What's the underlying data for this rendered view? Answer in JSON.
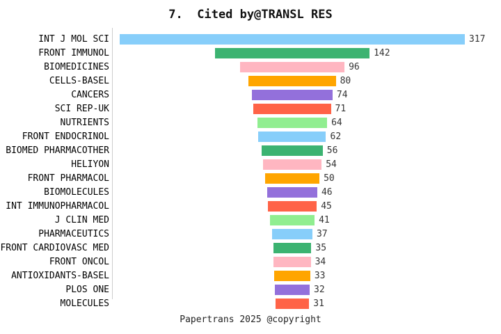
{
  "chart_data": {
    "type": "bar",
    "variant": "horizontal-centered-funnel",
    "title": "7.  Cited by@TRANSL RES",
    "categories": [
      "INT J MOL SCI",
      "FRONT IMMUNOL",
      "BIOMEDICINES",
      "CELLS-BASEL",
      "CANCERS",
      "SCI REP-UK",
      "NUTRIENTS",
      "FRONT ENDOCRINOL",
      "BIOMED PHARMACOTHER",
      "HELIYON",
      "FRONT PHARMACOL",
      "BIOMOLECULES",
      "INT IMMUNOPHARMACOL",
      "J CLIN MED",
      "PHARMACEUTICS",
      "FRONT CARDIOVASC MED",
      "FRONT ONCOL",
      "ANTIOXIDANTS-BASEL",
      "PLOS ONE",
      "MOLECULES"
    ],
    "values": [
      317,
      142,
      96,
      80,
      74,
      71,
      64,
      62,
      56,
      54,
      50,
      46,
      45,
      41,
      37,
      35,
      34,
      33,
      32,
      31
    ],
    "value_max": 317,
    "xlabel": "",
    "ylabel": "",
    "grid": false,
    "legend_position": "none",
    "data_labels": "end-of-bar",
    "palette": [
      "#87CEFA",
      "#3CB371",
      "#FFB6C1",
      "#FFA500",
      "#9370DB",
      "#FF6347",
      "#90EE90"
    ],
    "axis_line_color": "#cccccc",
    "value_label_color": "#333333",
    "category_label_color": "#000000",
    "title_color": "#111111"
  },
  "footer": {
    "text": "Papertrans 2025 @copyright"
  }
}
